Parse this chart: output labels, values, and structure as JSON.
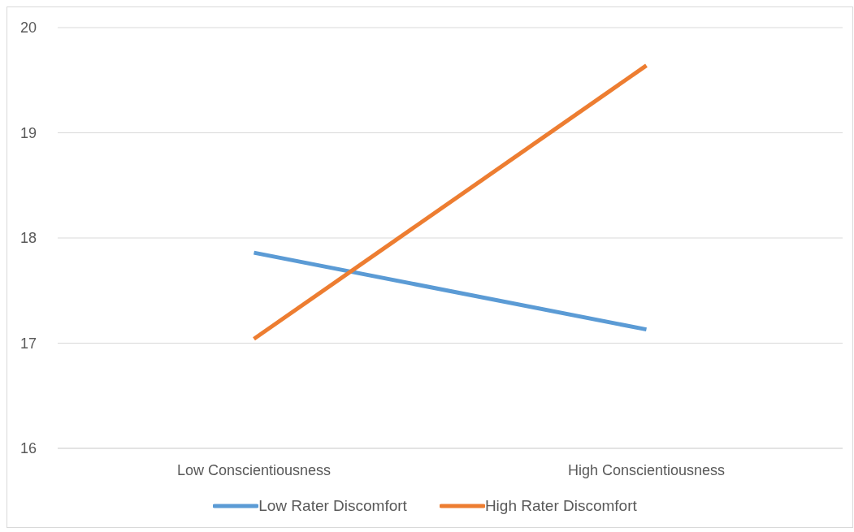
{
  "chart_data": {
    "type": "line",
    "categories": [
      "Low Conscientiousness",
      "High Conscientiousness"
    ],
    "series": [
      {
        "name": "Low Rater Discomfort",
        "color": "#5b9bd5",
        "values": [
          17.86,
          17.13
        ]
      },
      {
        "name": "High Rater Discomfort",
        "color": "#ed7d31",
        "values": [
          17.04,
          19.64
        ]
      }
    ],
    "ylim": [
      16,
      20
    ],
    "yticks": [
      16,
      17,
      18,
      19,
      20
    ],
    "grid": "y",
    "legend": "bottom",
    "marker": "none",
    "line_style": "solid"
  }
}
